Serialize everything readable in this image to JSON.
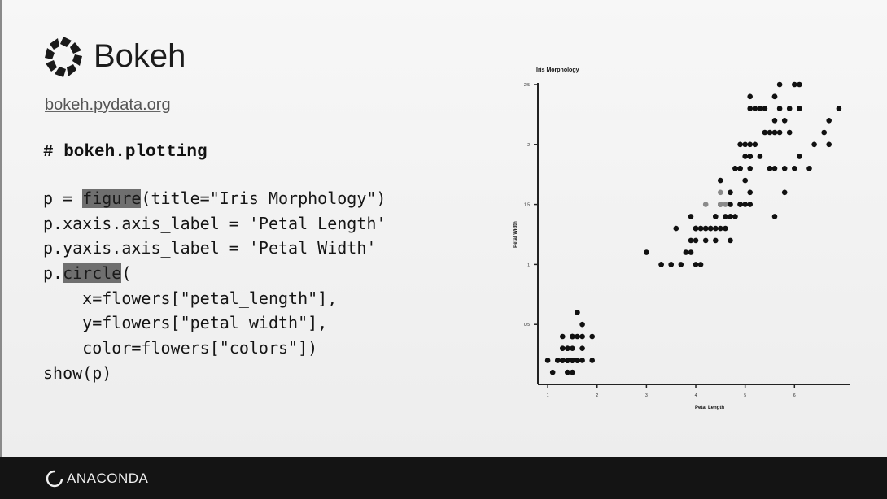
{
  "brand": {
    "name": "Bokeh",
    "url": "bokeh.pydata.org"
  },
  "code": {
    "comment": "# bokeh.plotting",
    "lines": [
      [
        {
          "t": "p = "
        },
        {
          "t": "figure",
          "h": true
        },
        {
          "t": "(title=\"Iris Morphology\")"
        }
      ],
      [
        {
          "t": "p.xaxis.axis_label = 'Petal Length'"
        }
      ],
      [
        {
          "t": "p.yaxis.axis_label = 'Petal Width'"
        }
      ],
      [
        {
          "t": "p."
        },
        {
          "t": "circle",
          "h": true
        },
        {
          "t": "("
        }
      ],
      [
        {
          "t": "    x=flowers[\"petal_length\"],"
        }
      ],
      [
        {
          "t": "    y=flowers[\"petal_width\"],"
        }
      ],
      [
        {
          "t": "    color=flowers[\"colors\"])"
        }
      ],
      [
        {
          "t": "show(p)"
        }
      ]
    ]
  },
  "footer": {
    "brand": "ANACONDA"
  },
  "colors": {
    "highlight": "#6f6f6f",
    "footer_bg": "#141414",
    "points": "#111111",
    "points_mid": "#8a8a8a"
  },
  "chart_data": {
    "type": "scatter",
    "title": "Iris Morphology",
    "xlabel": "Petal Length",
    "ylabel": "Petal Width",
    "xlim": [
      0.8,
      7.1
    ],
    "ylim": [
      0,
      2.5
    ],
    "x_ticks": [
      1,
      2,
      3,
      4,
      5,
      6
    ],
    "y_ticks": [
      0.5,
      1,
      1.5,
      2,
      2.5
    ],
    "series": [
      {
        "points": [
          [
            1.4,
            0.2
          ],
          [
            1.4,
            0.2
          ],
          [
            1.3,
            0.2
          ],
          [
            1.5,
            0.2
          ],
          [
            1.4,
            0.2
          ],
          [
            1.7,
            0.4
          ],
          [
            1.4,
            0.3
          ],
          [
            1.5,
            0.2
          ],
          [
            1.4,
            0.2
          ],
          [
            1.5,
            0.1
          ],
          [
            1.5,
            0.2
          ],
          [
            1.6,
            0.2
          ],
          [
            1.4,
            0.1
          ],
          [
            1.1,
            0.1
          ],
          [
            1.2,
            0.2
          ],
          [
            1.5,
            0.4
          ],
          [
            1.3,
            0.4
          ],
          [
            1.4,
            0.3
          ],
          [
            1.7,
            0.3
          ],
          [
            1.5,
            0.3
          ],
          [
            1.7,
            0.2
          ],
          [
            1.5,
            0.4
          ],
          [
            1.0,
            0.2
          ],
          [
            1.7,
            0.5
          ],
          [
            1.9,
            0.2
          ],
          [
            1.6,
            0.2
          ],
          [
            1.6,
            0.4
          ],
          [
            1.5,
            0.2
          ],
          [
            1.4,
            0.2
          ],
          [
            1.6,
            0.2
          ],
          [
            1.6,
            0.2
          ],
          [
            1.5,
            0.4
          ],
          [
            1.5,
            0.1
          ],
          [
            1.4,
            0.2
          ],
          [
            1.5,
            0.2
          ],
          [
            1.2,
            0.2
          ],
          [
            1.3,
            0.2
          ],
          [
            1.4,
            0.1
          ],
          [
            1.3,
            0.2
          ],
          [
            1.5,
            0.2
          ],
          [
            1.3,
            0.3
          ],
          [
            1.3,
            0.3
          ],
          [
            1.3,
            0.2
          ],
          [
            1.6,
            0.6
          ],
          [
            1.9,
            0.4
          ],
          [
            1.4,
            0.3
          ],
          [
            1.6,
            0.2
          ],
          [
            1.4,
            0.2
          ],
          [
            1.5,
            0.2
          ],
          [
            1.4,
            0.2
          ]
        ]
      },
      {
        "points": [
          [
            4.7,
            1.4
          ],
          [
            4.5,
            1.5
          ],
          [
            4.9,
            1.5
          ],
          [
            4.0,
            1.3
          ],
          [
            4.6,
            1.5
          ],
          [
            4.5,
            1.3
          ],
          [
            4.7,
            1.6
          ],
          [
            3.3,
            1.0
          ],
          [
            4.6,
            1.3
          ],
          [
            3.9,
            1.4
          ],
          [
            3.5,
            1.0
          ],
          [
            4.2,
            1.5
          ],
          [
            4.0,
            1.0
          ],
          [
            4.7,
            1.4
          ],
          [
            3.6,
            1.3
          ],
          [
            4.4,
            1.4
          ],
          [
            4.5,
            1.5
          ],
          [
            4.1,
            1.0
          ],
          [
            4.5,
            1.5
          ],
          [
            3.9,
            1.1
          ],
          [
            4.8,
            1.8
          ],
          [
            4.0,
            1.3
          ],
          [
            4.9,
            1.5
          ],
          [
            4.7,
            1.2
          ],
          [
            4.3,
            1.3
          ],
          [
            4.4,
            1.4
          ],
          [
            4.8,
            1.4
          ],
          [
            5.0,
            1.7
          ],
          [
            4.5,
            1.5
          ],
          [
            3.5,
            1.0
          ],
          [
            3.8,
            1.1
          ],
          [
            3.7,
            1.0
          ],
          [
            3.9,
            1.2
          ],
          [
            5.1,
            1.6
          ],
          [
            4.5,
            1.5
          ],
          [
            4.5,
            1.6
          ],
          [
            4.7,
            1.5
          ],
          [
            4.4,
            1.3
          ],
          [
            4.1,
            1.3
          ],
          [
            4.0,
            1.3
          ],
          [
            4.4,
            1.2
          ],
          [
            4.6,
            1.4
          ],
          [
            4.0,
            1.2
          ],
          [
            3.3,
            1.0
          ],
          [
            4.2,
            1.3
          ],
          [
            4.2,
            1.2
          ],
          [
            4.2,
            1.3
          ],
          [
            4.3,
            1.3
          ],
          [
            3.0,
            1.1
          ],
          [
            4.1,
            1.3
          ]
        ]
      },
      {
        "points": [
          [
            6.0,
            2.5
          ],
          [
            5.1,
            1.9
          ],
          [
            5.9,
            2.1
          ],
          [
            5.6,
            1.8
          ],
          [
            5.8,
            2.2
          ],
          [
            6.6,
            2.1
          ],
          [
            4.5,
            1.7
          ],
          [
            6.3,
            1.8
          ],
          [
            5.8,
            1.8
          ],
          [
            6.1,
            2.5
          ],
          [
            5.1,
            2.0
          ],
          [
            5.3,
            1.9
          ],
          [
            5.5,
            2.1
          ],
          [
            5.0,
            2.0
          ],
          [
            5.1,
            2.4
          ],
          [
            5.3,
            2.3
          ],
          [
            5.5,
            1.8
          ],
          [
            6.7,
            2.2
          ],
          [
            6.9,
            2.3
          ],
          [
            5.0,
            1.5
          ],
          [
            5.7,
            2.3
          ],
          [
            4.9,
            2.0
          ],
          [
            6.7,
            2.0
          ],
          [
            4.9,
            1.8
          ],
          [
            5.7,
            2.1
          ],
          [
            6.0,
            1.8
          ],
          [
            4.8,
            1.8
          ],
          [
            4.9,
            1.8
          ],
          [
            5.6,
            2.1
          ],
          [
            5.8,
            1.6
          ],
          [
            6.1,
            1.9
          ],
          [
            6.4,
            2.0
          ],
          [
            5.6,
            2.2
          ],
          [
            5.1,
            1.5
          ],
          [
            5.6,
            1.4
          ],
          [
            6.1,
            2.3
          ],
          [
            5.6,
            2.4
          ],
          [
            5.5,
            1.8
          ],
          [
            4.8,
            1.8
          ],
          [
            5.4,
            2.1
          ],
          [
            5.6,
            2.4
          ],
          [
            5.1,
            2.3
          ],
          [
            5.1,
            1.9
          ],
          [
            5.9,
            2.3
          ],
          [
            5.7,
            2.5
          ],
          [
            5.2,
            2.3
          ],
          [
            5.0,
            1.9
          ],
          [
            5.2,
            2.0
          ],
          [
            5.4,
            2.3
          ],
          [
            5.1,
            1.8
          ]
        ]
      }
    ]
  }
}
